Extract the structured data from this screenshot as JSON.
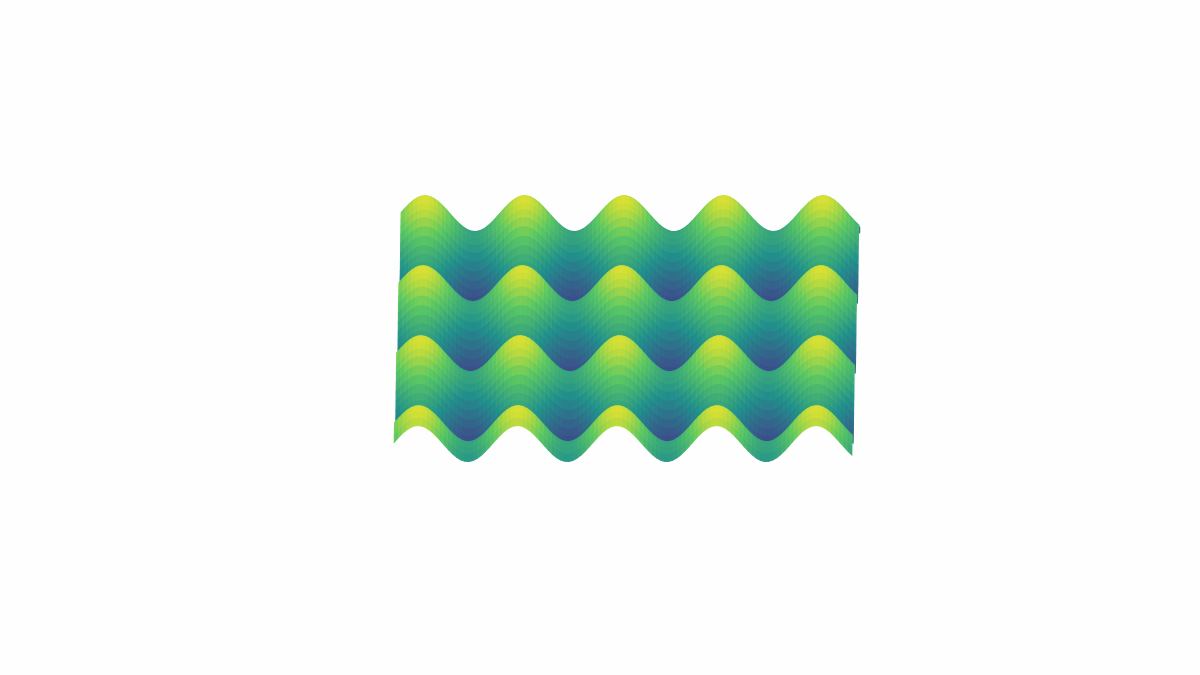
{
  "chart_data": {
    "type": "surface",
    "colormap": "viridis",
    "axis": false
  }
}
